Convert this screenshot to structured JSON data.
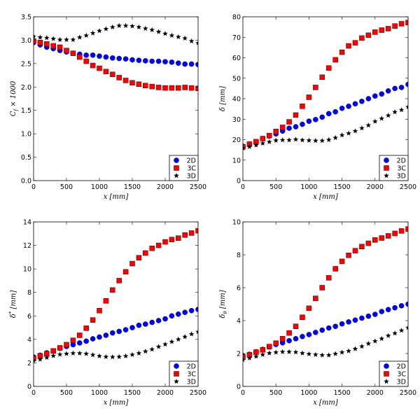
{
  "chart_data": [
    {
      "type": "scatter",
      "xlabel": "x [mm]",
      "ylabel": {
        "base": "C",
        "sub": "f",
        "rest": " × 1000"
      },
      "xlim": [
        0,
        2500
      ],
      "ylim": [
        0,
        3.5
      ],
      "xticks": [
        0,
        500,
        1000,
        1500,
        2000,
        2500
      ],
      "yticks": [
        "0.0",
        "0.5",
        "1.0",
        "1.5",
        "2.0",
        "2.5",
        "3.0",
        "3.5"
      ],
      "grid": false,
      "legend_position": "lower-right",
      "x": [
        0,
        100,
        200,
        300,
        400,
        500,
        600,
        700,
        800,
        900,
        1000,
        1100,
        1200,
        1300,
        1400,
        1500,
        1600,
        1700,
        1800,
        1900,
        2000,
        2100,
        2200,
        2300,
        2400,
        2500
      ],
      "series": [
        {
          "name": "2D",
          "marker": "circle",
          "color": "#0000ff",
          "values": [
            2.95,
            2.9,
            2.85,
            2.82,
            2.78,
            2.75,
            2.72,
            2.7,
            2.68,
            2.68,
            2.66,
            2.64,
            2.62,
            2.61,
            2.6,
            2.58,
            2.57,
            2.56,
            2.55,
            2.55,
            2.54,
            2.53,
            2.51,
            2.49,
            2.49,
            2.48
          ]
        },
        {
          "name": "3C",
          "marker": "square",
          "color": "#ff0000",
          "values": [
            2.98,
            2.95,
            2.92,
            2.88,
            2.85,
            2.78,
            2.72,
            2.64,
            2.55,
            2.46,
            2.4,
            2.33,
            2.27,
            2.2,
            2.14,
            2.09,
            2.06,
            2.03,
            2.01,
            1.99,
            1.98,
            1.98,
            1.98,
            1.99,
            1.98,
            1.97
          ]
        },
        {
          "name": "3D",
          "marker": "star",
          "color": "#000000",
          "values": [
            3.08,
            3.06,
            3.05,
            3.03,
            3.01,
            3.01,
            3.01,
            3.06,
            3.1,
            3.15,
            3.2,
            3.24,
            3.28,
            3.31,
            3.31,
            3.3,
            3.28,
            3.25,
            3.22,
            3.18,
            3.14,
            3.1,
            3.07,
            3.04,
            2.98,
            2.94
          ]
        }
      ]
    },
    {
      "type": "scatter",
      "xlabel": "x [mm]",
      "ylabel": {
        "base": "δ",
        "sub": "",
        "rest": " [mm]"
      },
      "xlim": [
        0,
        2500
      ],
      "ylim": [
        0,
        80
      ],
      "xticks": [
        0,
        500,
        1000,
        1500,
        2000,
        2500
      ],
      "yticks": [
        "0",
        "10",
        "20",
        "30",
        "40",
        "50",
        "60",
        "70",
        "80"
      ],
      "grid": false,
      "legend_position": "lower-right",
      "x": [
        0,
        100,
        200,
        300,
        400,
        500,
        600,
        700,
        800,
        900,
        1000,
        1100,
        1200,
        1300,
        1400,
        1500,
        1600,
        1700,
        1800,
        1900,
        2000,
        2100,
        2200,
        2300,
        2400,
        2500
      ],
      "series": [
        {
          "name": "2D",
          "marker": "circle",
          "color": "#0000ff",
          "values": [
            16.8,
            17.8,
            19.0,
            20.5,
            21.8,
            22.8,
            24.2,
            25.6,
            26.3,
            27.5,
            29.0,
            29.8,
            31.0,
            32.7,
            33.6,
            35.3,
            36.3,
            37.5,
            38.7,
            40.0,
            41.3,
            42.3,
            43.8,
            45.0,
            45.5,
            47.0
          ]
        },
        {
          "name": "3C",
          "marker": "square",
          "color": "#ff0000",
          "values": [
            16.5,
            17.8,
            19.0,
            20.5,
            22.0,
            24.0,
            26.0,
            28.7,
            32.0,
            36.3,
            40.7,
            45.5,
            50.5,
            55.0,
            59.0,
            62.7,
            65.8,
            67.3,
            69.6,
            71.0,
            72.5,
            73.5,
            74.2,
            75.5,
            76.6,
            77.2
          ]
        },
        {
          "name": "3D",
          "marker": "star",
          "color": "#000000",
          "values": [
            15.8,
            16.5,
            17.3,
            18.2,
            18.9,
            19.6,
            19.8,
            19.8,
            20.1,
            19.8,
            19.6,
            19.5,
            19.5,
            19.9,
            20.9,
            22.2,
            23.1,
            24.2,
            25.6,
            27.0,
            28.9,
            30.3,
            31.8,
            33.5,
            34.5,
            36.0
          ]
        }
      ]
    },
    {
      "type": "scatter",
      "xlabel": "x [mm]",
      "ylabel": {
        "base": "δ",
        "sup": "*",
        "sub": "",
        "rest": " [mm]"
      },
      "xlim": [
        0,
        2500
      ],
      "ylim": [
        0,
        14
      ],
      "xticks": [
        0,
        500,
        1000,
        1500,
        2000,
        2500
      ],
      "yticks": [
        "0",
        "2",
        "4",
        "6",
        "8",
        "10",
        "12",
        "14"
      ],
      "grid": false,
      "legend_position": "lower-right",
      "x": [
        0,
        100,
        200,
        300,
        400,
        500,
        600,
        700,
        800,
        900,
        1000,
        1100,
        1200,
        1300,
        1400,
        1500,
        1600,
        1700,
        1800,
        1900,
        2000,
        2100,
        2200,
        2300,
        2400,
        2500
      ],
      "series": [
        {
          "name": "2D",
          "marker": "circle",
          "color": "#0000ff",
          "values": [
            2.5,
            2.65,
            2.85,
            3.0,
            3.25,
            3.4,
            3.55,
            3.7,
            3.85,
            4.05,
            4.2,
            4.35,
            4.55,
            4.68,
            4.82,
            5.0,
            5.2,
            5.3,
            5.45,
            5.6,
            5.75,
            6.0,
            6.15,
            6.3,
            6.45,
            6.55
          ]
        },
        {
          "name": "3C",
          "marker": "square",
          "color": "#ff0000",
          "values": [
            2.38,
            2.6,
            2.78,
            3.02,
            3.28,
            3.55,
            3.92,
            4.35,
            4.95,
            5.65,
            6.45,
            7.28,
            8.2,
            9.0,
            9.75,
            10.45,
            10.95,
            11.35,
            11.75,
            12.0,
            12.3,
            12.5,
            12.62,
            12.88,
            13.05,
            13.25
          ]
        },
        {
          "name": "3D",
          "marker": "star",
          "color": "#000000",
          "values": [
            2.2,
            2.3,
            2.45,
            2.6,
            2.72,
            2.78,
            2.82,
            2.82,
            2.78,
            2.68,
            2.58,
            2.52,
            2.5,
            2.52,
            2.58,
            2.7,
            2.82,
            2.98,
            3.15,
            3.38,
            3.58,
            3.8,
            4.0,
            4.22,
            4.45,
            4.65
          ]
        }
      ]
    },
    {
      "type": "scatter",
      "xlabel": "x [mm]",
      "ylabel": {
        "base": "δ",
        "sub": "θ",
        "rest": " [mm]"
      },
      "xlim": [
        0,
        2500
      ],
      "ylim": [
        0,
        10
      ],
      "xticks": [
        0,
        500,
        1000,
        1500,
        2000,
        2500
      ],
      "yticks": [
        "0",
        "2",
        "4",
        "6",
        "8",
        "10"
      ],
      "grid": false,
      "legend_position": "lower-right",
      "x": [
        0,
        100,
        200,
        300,
        400,
        500,
        600,
        700,
        800,
        900,
        1000,
        1100,
        1200,
        1300,
        1400,
        1500,
        1600,
        1700,
        1800,
        1900,
        2000,
        2100,
        2200,
        2300,
        2400,
        2500
      ],
      "series": [
        {
          "name": "2D",
          "marker": "circle",
          "color": "#0000ff",
          "values": [
            1.85,
            1.95,
            2.1,
            2.25,
            2.4,
            2.55,
            2.65,
            2.78,
            2.9,
            3.03,
            3.15,
            3.28,
            3.42,
            3.55,
            3.65,
            3.8,
            3.92,
            4.03,
            4.15,
            4.27,
            4.38,
            4.55,
            4.67,
            4.78,
            4.9,
            5.0
          ]
        },
        {
          "name": "3C",
          "marker": "square",
          "color": "#ff0000",
          "values": [
            1.78,
            1.92,
            2.08,
            2.22,
            2.42,
            2.63,
            2.9,
            3.25,
            3.65,
            4.2,
            4.75,
            5.35,
            6.0,
            6.6,
            7.15,
            7.6,
            7.97,
            8.25,
            8.5,
            8.7,
            8.9,
            9.02,
            9.15,
            9.3,
            9.45,
            9.57
          ]
        },
        {
          "name": "3D",
          "marker": "star",
          "color": "#000000",
          "values": [
            1.62,
            1.72,
            1.82,
            1.93,
            2.02,
            2.07,
            2.1,
            2.1,
            2.08,
            2.02,
            1.97,
            1.93,
            1.9,
            1.9,
            1.98,
            2.07,
            2.15,
            2.28,
            2.43,
            2.6,
            2.75,
            2.9,
            3.08,
            3.23,
            3.4,
            3.57
          ]
        }
      ]
    }
  ]
}
